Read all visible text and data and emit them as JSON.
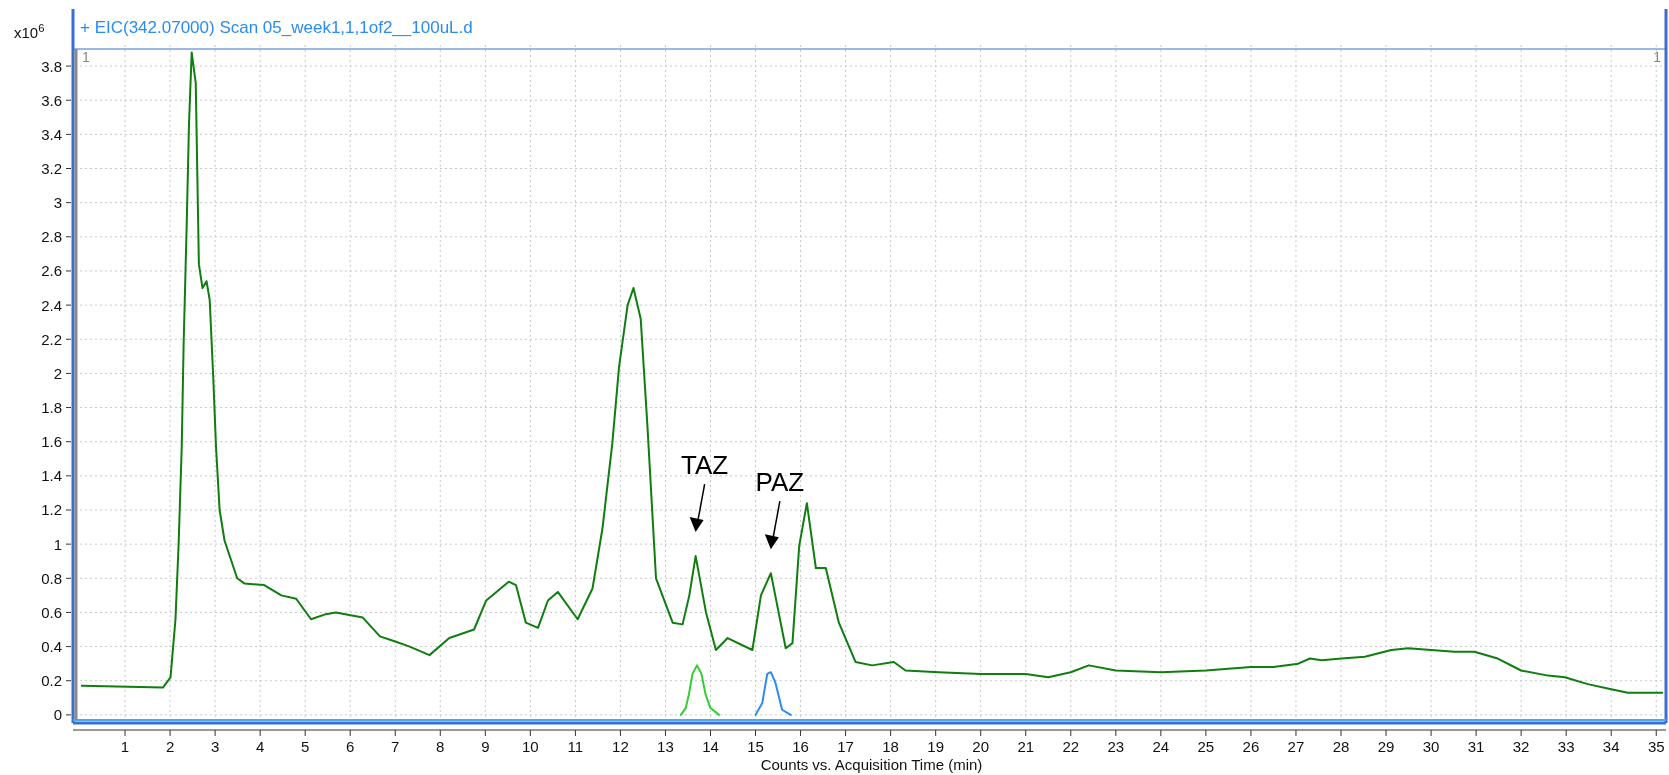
{
  "chart_data": {
    "type": "line",
    "title": "+ EIC(342.07000) Scan 05_week1,1,1of2__100uL.d",
    "xlabel": "Counts vs. Acquisition Time (min)",
    "ylabel": "x10$^{6}$",
    "xlim": [
      0,
      35.15
    ],
    "ylim": [
      -0.03,
      3.9
    ],
    "xticks": [
      1,
      2,
      3,
      4,
      5,
      6,
      7,
      8,
      9,
      10,
      11,
      12,
      13,
      14,
      15,
      16,
      17,
      18,
      19,
      20,
      21,
      22,
      23,
      24,
      25,
      26,
      27,
      28,
      29,
      30,
      31,
      32,
      33,
      34,
      35
    ],
    "yticks": [
      0,
      0.2,
      0.4,
      0.6,
      0.8,
      1,
      1.2,
      1.4,
      1.6,
      1.8,
      2,
      2.2,
      2.4,
      2.6,
      2.8,
      3,
      3.2,
      3.4,
      3.6,
      3.8
    ],
    "grid": true,
    "series": [
      {
        "color": "#0f7d0f",
        "x": [
          0.04,
          1.84,
          2.01,
          2.12,
          2.19,
          2.26,
          2.3,
          2.37,
          2.42,
          2.48,
          2.57,
          2.64,
          2.72,
          2.81,
          2.88,
          2.96,
          3.02,
          3.1,
          3.21,
          3.49,
          3.65,
          4.09,
          4.47,
          4.8,
          5.13,
          5.46,
          5.68,
          6.28,
          6.66,
          7.0,
          7.32,
          7.76,
          8.2,
          8.75,
          9.02,
          9.52,
          9.68,
          9.9,
          10.17,
          10.39,
          10.61,
          11.05,
          11.38,
          11.6,
          11.82,
          11.97,
          12.16,
          12.29,
          12.45,
          12.6,
          12.79,
          13.16,
          13.38,
          13.53,
          13.67,
          13.9,
          14.12,
          14.38,
          14.93,
          15.12,
          15.34,
          15.67,
          15.82,
          15.97,
          16.14,
          16.34,
          16.56,
          16.85,
          17.22,
          17.59,
          18.07,
          18.33,
          19.07,
          20.0,
          21.0,
          21.5,
          22.0,
          22.4,
          23.0,
          24.0,
          25.0,
          26.0,
          26.5,
          27.05,
          27.31,
          27.57,
          28.01,
          28.53,
          29.12,
          29.49,
          30.0,
          30.52,
          30.96,
          31.48,
          32.0,
          32.6,
          32.97,
          33.48,
          34.0,
          34.37,
          35.04,
          35.14
        ],
        "values": [
          0.17,
          0.16,
          0.22,
          0.56,
          1.0,
          1.58,
          2.16,
          2.88,
          3.46,
          3.88,
          3.7,
          2.64,
          2.5,
          2.54,
          2.43,
          1.97,
          1.57,
          1.2,
          1.02,
          0.8,
          0.77,
          0.76,
          0.7,
          0.68,
          0.56,
          0.59,
          0.6,
          0.57,
          0.46,
          0.43,
          0.4,
          0.35,
          0.45,
          0.5,
          0.67,
          0.78,
          0.76,
          0.54,
          0.51,
          0.67,
          0.72,
          0.56,
          0.74,
          1.09,
          1.59,
          2.04,
          2.4,
          2.5,
          2.32,
          1.69,
          0.8,
          0.54,
          0.53,
          0.7,
          0.93,
          0.6,
          0.38,
          0.45,
          0.38,
          0.7,
          0.83,
          0.39,
          0.42,
          0.99,
          1.24,
          0.86,
          0.86,
          0.54,
          0.31,
          0.29,
          0.31,
          0.26,
          0.25,
          0.24,
          0.24,
          0.22,
          0.25,
          0.29,
          0.26,
          0.25,
          0.26,
          0.28,
          0.28,
          0.3,
          0.33,
          0.32,
          0.33,
          0.34,
          0.38,
          0.39,
          0.38,
          0.37,
          0.37,
          0.33,
          0.26,
          0.23,
          0.22,
          0.18,
          0.15,
          0.13,
          0.13,
          0.13
        ]
      },
      {
        "color": "#33cc33",
        "x": [
          13.34,
          13.45,
          13.52,
          13.6,
          13.7,
          13.8,
          13.89,
          14.0,
          14.19
        ],
        "values": [
          0,
          0.04,
          0.12,
          0.24,
          0.29,
          0.24,
          0.12,
          0.04,
          0
        ]
      },
      {
        "color": "#2a8cf0",
        "x": [
          15.0,
          15.15,
          15.26,
          15.34,
          15.44,
          15.59,
          15.78
        ],
        "values": [
          0,
          0.07,
          0.24,
          0.25,
          0.19,
          0.03,
          0
        ]
      }
    ],
    "annotations": [
      {
        "text": "TAZ",
        "x": 13.67,
        "y": 0.93
      },
      {
        "text": "PAZ",
        "x": 15.34,
        "y": 0.83
      },
      "1",
      "1"
    ]
  }
}
